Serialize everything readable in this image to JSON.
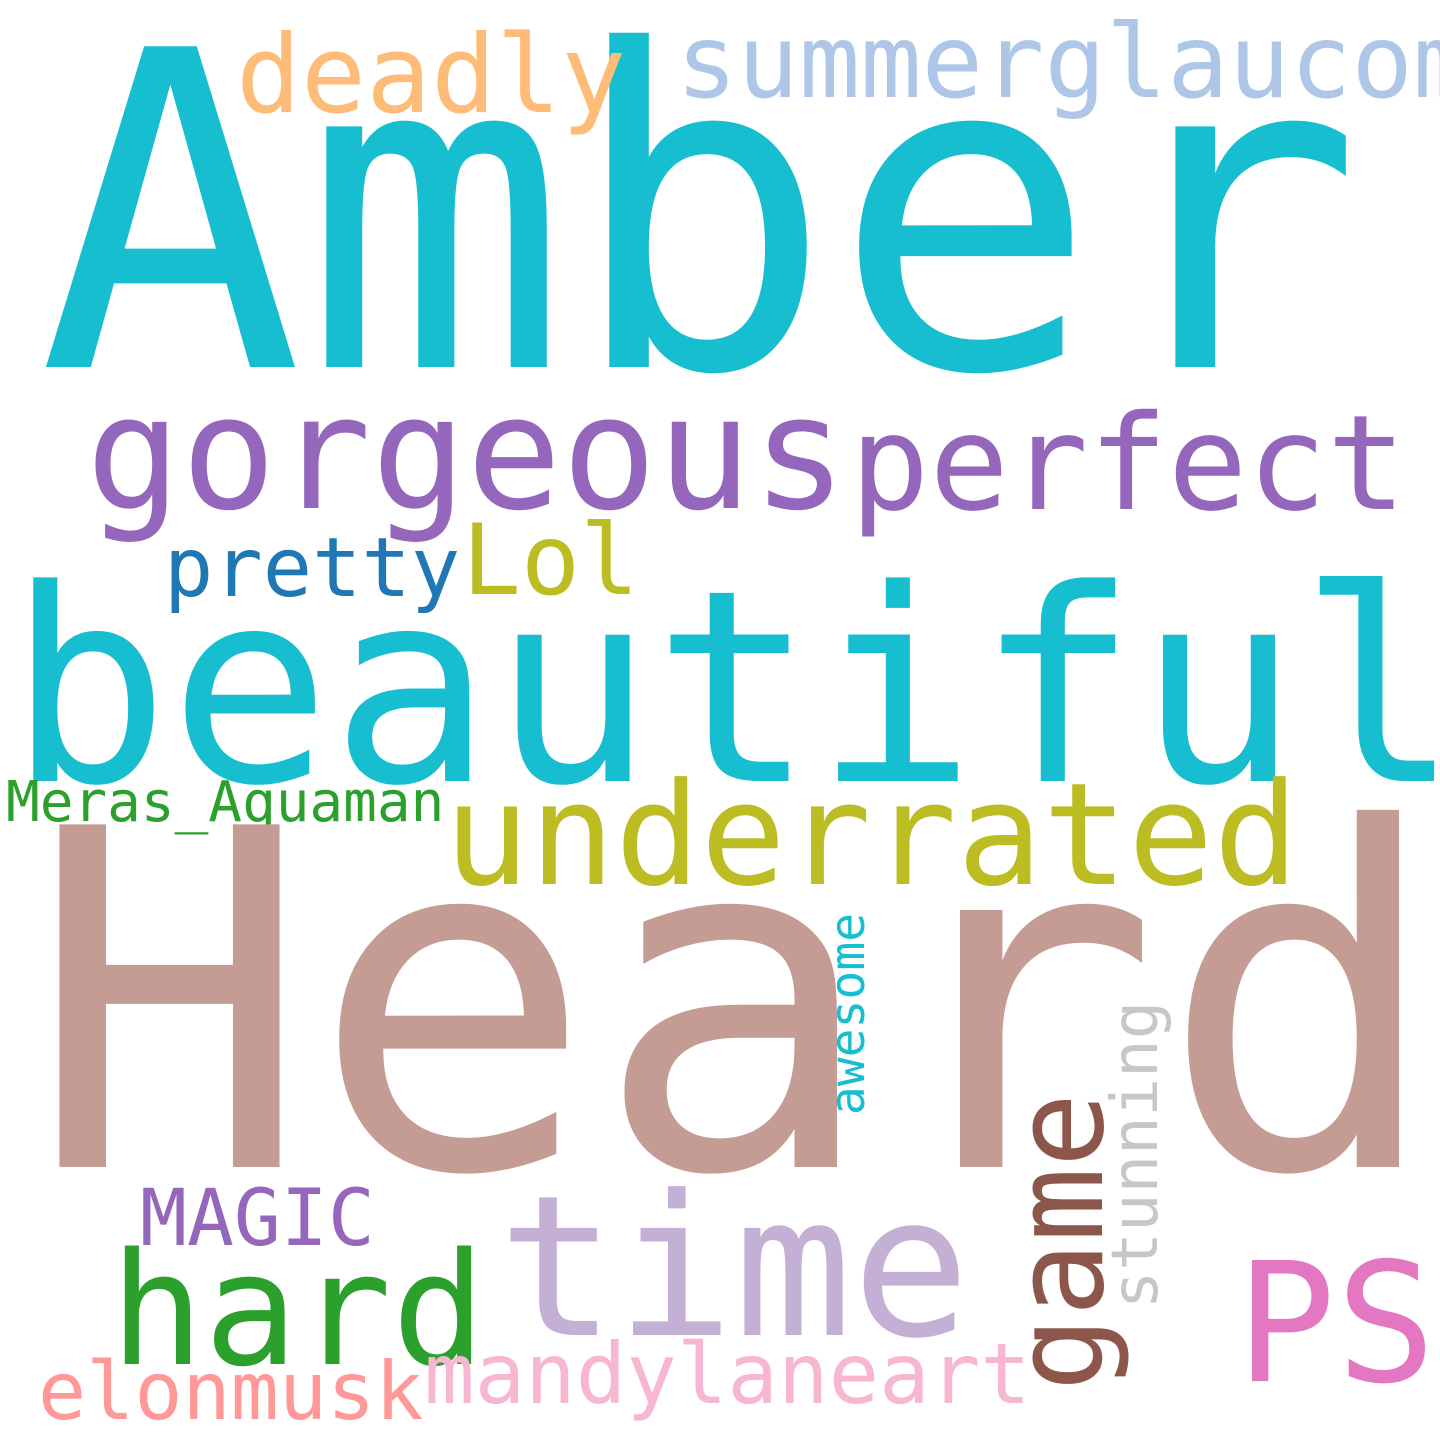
{
  "words": [
    {
      "text": "Amber",
      "color": "#17becf"
    },
    {
      "text": "Heard",
      "color": "#c49c94"
    },
    {
      "text": "beautiful",
      "color": "#17becf"
    },
    {
      "text": "gorgeous",
      "color": "#9467bd"
    },
    {
      "text": "perfect",
      "color": "#9467bd"
    },
    {
      "text": "underrated",
      "color": "#bcbd22"
    },
    {
      "text": "time",
      "color": "#c5b0d5"
    },
    {
      "text": "hard",
      "color": "#2ca02c"
    },
    {
      "text": "PS",
      "color": "#e377c2"
    },
    {
      "text": "game",
      "color": "#8c564b"
    },
    {
      "text": "summerglaucom",
      "color": "#aec7e8"
    },
    {
      "text": "deadly",
      "color": "#ffbb78"
    },
    {
      "text": "pretty",
      "color": "#1f77b4"
    },
    {
      "text": "Lol",
      "color": "#bcbd22"
    },
    {
      "text": "Meras_Aquaman",
      "color": "#2ca02c"
    },
    {
      "text": "stunning",
      "color": "#c7c7c7"
    },
    {
      "text": "awesome",
      "color": "#17becf"
    },
    {
      "text": "MAGIC",
      "color": "#9467bd"
    },
    {
      "text": "elonmusk",
      "color": "#ff9896"
    },
    {
      "text": "mandylaneart",
      "color": "#f7b6d2"
    }
  ]
}
